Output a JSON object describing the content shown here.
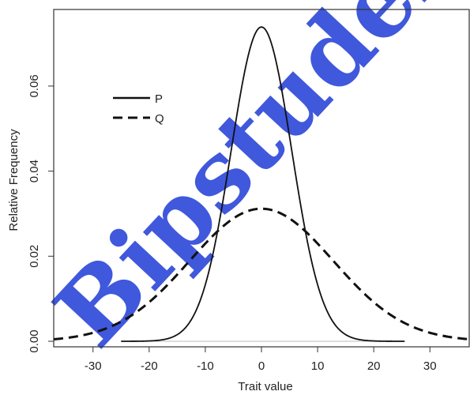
{
  "chart_data": {
    "type": "line",
    "title": "",
    "xlabel": "Trait value",
    "ylabel": "Relative Frequency",
    "xlim": [
      -37,
      37
    ],
    "ylim": [
      -0.0013,
      0.078
    ],
    "xticks": [
      -30,
      -20,
      -10,
      0,
      10,
      20,
      30
    ],
    "xtick_labels": [
      "-30",
      "-20",
      "-10",
      "0",
      "10",
      "20",
      "30"
    ],
    "yticks": [
      0.0,
      0.02,
      0.04,
      0.06
    ],
    "ytick_labels": [
      "0.00",
      "0.02",
      "0.04",
      "0.06"
    ],
    "grid": false,
    "legend_position": "top-left",
    "series": [
      {
        "name": "P",
        "dist": "normal",
        "mean": 0,
        "sd": 5.4,
        "x_range": [
          -25,
          25.5
        ],
        "line_style": "solid"
      },
      {
        "name": "Q",
        "dist": "normal",
        "mean": 0,
        "sd": 12.8,
        "x_range": [
          -37,
          37
        ],
        "line_style": "dashed"
      }
    ],
    "baseline": {
      "y": 0,
      "x_range": [
        -25,
        25.5
      ]
    },
    "watermark_text": "Bipstudent"
  },
  "colors": {
    "line": "#111111",
    "axis": "#333333",
    "watermark": "#1f3bd6",
    "baseline": "#bbbbbb"
  }
}
